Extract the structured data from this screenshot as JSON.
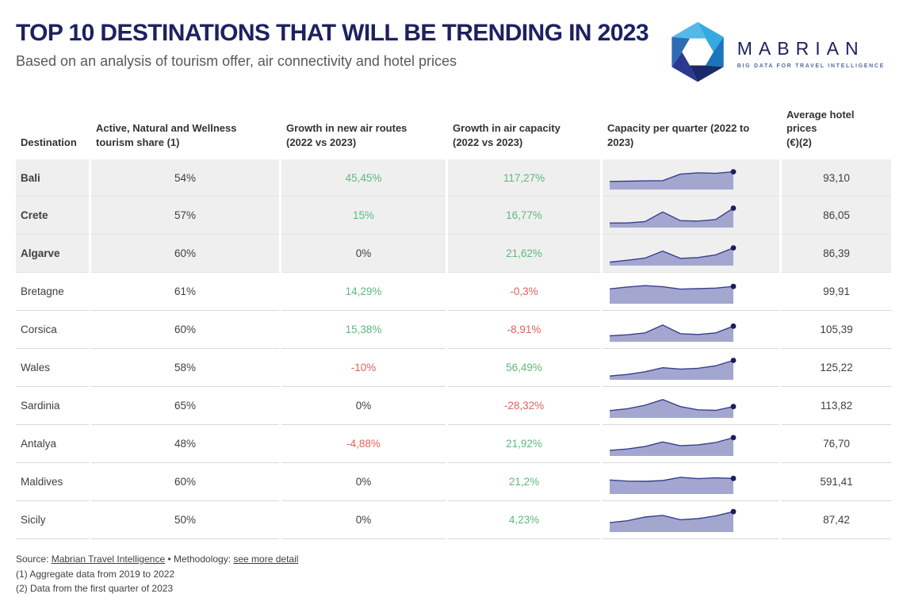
{
  "header": {
    "title": "TOP 10 DESTINATIONS THAT WILL BE TRENDING IN 2023",
    "subtitle": "Based on an analysis of tourism offer, air connectivity and hotel prices"
  },
  "logo": {
    "name": "MABRIAN",
    "tagline": "BIG DATA FOR TRAVEL INTELLIGENCE",
    "icon": "aperture-hexagon-icon",
    "icon_colors": [
      "#36a9e1",
      "#1b75bc",
      "#1b2a68",
      "#2b3990",
      "#2d6cb5",
      "#53b9e9"
    ]
  },
  "colors": {
    "accent_navy": "#1d2161",
    "positive": "#5cba7d",
    "negative": "#e2615c",
    "neutral_text": "#3f3f3f",
    "highlight_row_bg": "#efefef",
    "spark_fill": "#a3a7d0",
    "spark_stroke": "#3a3f8c",
    "spark_dot": "#1b1f5c",
    "separator": "#d9d9d9"
  },
  "table": {
    "columns": [
      {
        "id": "destination",
        "label_lines": [
          "Destination"
        ]
      },
      {
        "id": "tourism-share",
        "label_lines": [
          "Active, Natural and Wellness",
          "tourism share (1)"
        ]
      },
      {
        "id": "air-routes-growth",
        "label_lines": [
          "Growth in new air routes",
          "(2022 vs 2023)"
        ]
      },
      {
        "id": "air-capacity-growth",
        "label_lines": [
          "Growth in air capacity",
          "(2022 vs 2023)"
        ]
      },
      {
        "id": "capacity-per-quarter",
        "label_lines": [
          "Capacity per quarter (2022 to",
          "2023)"
        ]
      },
      {
        "id": "avg-hotel-prices",
        "label_lines": [
          "Average hotel prices",
          "(€)(2)"
        ]
      }
    ],
    "rows": [
      {
        "destination": "Bali",
        "highlight": true,
        "tourism_share": "54%",
        "air_routes_growth": {
          "value": "45,45%",
          "trend": "up"
        },
        "air_capacity_growth": {
          "value": "117,27%",
          "trend": "up"
        },
        "capacity_per_quarter": [
          0.3,
          0.31,
          0.32,
          0.33,
          0.57,
          0.62,
          0.6,
          0.66
        ],
        "avg_hotel_price": "93,10"
      },
      {
        "destination": "Crete",
        "highlight": true,
        "tourism_share": "57%",
        "air_routes_growth": {
          "value": "15%",
          "trend": "up"
        },
        "air_capacity_growth": {
          "value": "16,77%",
          "trend": "up"
        },
        "capacity_per_quarter": [
          0.17,
          0.17,
          0.22,
          0.58,
          0.26,
          0.24,
          0.3,
          0.72
        ],
        "avg_hotel_price": "86,05"
      },
      {
        "destination": "Algarve",
        "highlight": true,
        "tourism_share": "60%",
        "air_routes_growth": {
          "value": "0%",
          "trend": "flat"
        },
        "air_capacity_growth": {
          "value": "21,62%",
          "trend": "up"
        },
        "capacity_per_quarter": [
          0.13,
          0.2,
          0.28,
          0.54,
          0.27,
          0.3,
          0.4,
          0.66
        ],
        "avg_hotel_price": "86,39"
      },
      {
        "destination": "Bretagne",
        "highlight": false,
        "tourism_share": "61%",
        "air_routes_growth": {
          "value": "14,29%",
          "trend": "up"
        },
        "air_capacity_growth": {
          "value": "-0,3%",
          "trend": "down"
        },
        "capacity_per_quarter": [
          0.55,
          0.62,
          0.67,
          0.63,
          0.54,
          0.56,
          0.58,
          0.64
        ],
        "avg_hotel_price": "99,91"
      },
      {
        "destination": "Corsica",
        "highlight": false,
        "tourism_share": "60%",
        "air_routes_growth": {
          "value": "15,38%",
          "trend": "up"
        },
        "air_capacity_growth": {
          "value": "-8,91%",
          "trend": "down"
        },
        "capacity_per_quarter": [
          0.22,
          0.26,
          0.33,
          0.62,
          0.3,
          0.27,
          0.33,
          0.58
        ],
        "avg_hotel_price": "105,39"
      },
      {
        "destination": "Wales",
        "highlight": false,
        "tourism_share": "58%",
        "air_routes_growth": {
          "value": "-10%",
          "trend": "down"
        },
        "air_capacity_growth": {
          "value": "56,49%",
          "trend": "up"
        },
        "capacity_per_quarter": [
          0.14,
          0.2,
          0.3,
          0.45,
          0.4,
          0.43,
          0.52,
          0.72
        ],
        "avg_hotel_price": "125,22"
      },
      {
        "destination": "Sardinia",
        "highlight": false,
        "tourism_share": "65%",
        "air_routes_growth": {
          "value": "0%",
          "trend": "flat"
        },
        "air_capacity_growth": {
          "value": "-28,32%",
          "trend": "down"
        },
        "capacity_per_quarter": [
          0.27,
          0.34,
          0.47,
          0.68,
          0.42,
          0.3,
          0.28,
          0.42
        ],
        "avg_hotel_price": "113,82"
      },
      {
        "destination": "Antalya",
        "highlight": false,
        "tourism_share": "48%",
        "air_routes_growth": {
          "value": "-4,88%",
          "trend": "down"
        },
        "air_capacity_growth": {
          "value": "21,92%",
          "trend": "up"
        },
        "capacity_per_quarter": [
          0.21,
          0.26,
          0.35,
          0.52,
          0.38,
          0.41,
          0.5,
          0.68
        ],
        "avg_hotel_price": "76,70"
      },
      {
        "destination": "Maldives",
        "highlight": false,
        "tourism_share": "60%",
        "air_routes_growth": {
          "value": "0%",
          "trend": "flat"
        },
        "air_capacity_growth": {
          "value": "21,2%",
          "trend": "up"
        },
        "capacity_per_quarter": [
          0.52,
          0.48,
          0.47,
          0.5,
          0.62,
          0.57,
          0.6,
          0.58
        ],
        "avg_hotel_price": "591,41"
      },
      {
        "destination": "Sicily",
        "highlight": false,
        "tourism_share": "50%",
        "air_routes_growth": {
          "value": "0%",
          "trend": "flat"
        },
        "air_capacity_growth": {
          "value": "4,23%",
          "trend": "up"
        },
        "capacity_per_quarter": [
          0.35,
          0.42,
          0.56,
          0.62,
          0.46,
          0.5,
          0.6,
          0.76
        ],
        "avg_hotel_price": "87,42"
      }
    ]
  },
  "footer": {
    "source_prefix": "Source: ",
    "source_link": "Mabrian Travel Intelligence",
    "methodology_prefix": " • Methodology: ",
    "methodology_link": "see more detail",
    "footnote1": "(1) Aggregate data from 2019 to 2022",
    "footnote2": "(2) Data from the first quarter of 2023"
  },
  "chart_data": {
    "type": "table",
    "title": "TOP 10 DESTINATIONS THAT WILL BE TRENDING IN 2023",
    "columns": [
      "Destination",
      "Active, Natural and Wellness tourism share (1)",
      "Growth in new air routes (2022 vs 2023)",
      "Growth in air capacity (2022 vs 2023)",
      "Capacity per quarter (2022 to 2023)",
      "Average hotel prices (€)(2)"
    ],
    "rows": [
      [
        "Bali",
        "54%",
        "45,45%",
        "117,27%",
        "sparkline",
        "93,10"
      ],
      [
        "Crete",
        "57%",
        "15%",
        "16,77%",
        "sparkline",
        "86,05"
      ],
      [
        "Algarve",
        "60%",
        "0%",
        "21,62%",
        "sparkline",
        "86,39"
      ],
      [
        "Bretagne",
        "61%",
        "14,29%",
        "-0,3%",
        "sparkline",
        "99,91"
      ],
      [
        "Corsica",
        "60%",
        "15,38%",
        "-8,91%",
        "sparkline",
        "105,39"
      ],
      [
        "Wales",
        "58%",
        "-10%",
        "56,49%",
        "sparkline",
        "125,22"
      ],
      [
        "Sardinia",
        "65%",
        "0%",
        "-28,32%",
        "sparkline",
        "113,82"
      ],
      [
        "Antalya",
        "48%",
        "-4,88%",
        "21,92%",
        "sparkline",
        "76,70"
      ],
      [
        "Maldives",
        "60%",
        "0%",
        "21,2%",
        "sparkline",
        "591,41"
      ],
      [
        "Sicily",
        "50%",
        "0%",
        "4,23%",
        "sparkline",
        "87,42"
      ]
    ],
    "embedded_sparklines": {
      "type": "area",
      "points_per_series": 8,
      "ylim": [
        0,
        1
      ],
      "axes": "hidden",
      "series": [
        {
          "name": "Bali",
          "values": [
            0.3,
            0.31,
            0.32,
            0.33,
            0.57,
            0.62,
            0.6,
            0.66
          ]
        },
        {
          "name": "Crete",
          "values": [
            0.17,
            0.17,
            0.22,
            0.58,
            0.26,
            0.24,
            0.3,
            0.72
          ]
        },
        {
          "name": "Algarve",
          "values": [
            0.13,
            0.2,
            0.28,
            0.54,
            0.27,
            0.3,
            0.4,
            0.66
          ]
        },
        {
          "name": "Bretagne",
          "values": [
            0.55,
            0.62,
            0.67,
            0.63,
            0.54,
            0.56,
            0.58,
            0.64
          ]
        },
        {
          "name": "Corsica",
          "values": [
            0.22,
            0.26,
            0.33,
            0.62,
            0.3,
            0.27,
            0.33,
            0.58
          ]
        },
        {
          "name": "Wales",
          "values": [
            0.14,
            0.2,
            0.3,
            0.45,
            0.4,
            0.43,
            0.52,
            0.72
          ]
        },
        {
          "name": "Sardinia",
          "values": [
            0.27,
            0.34,
            0.47,
            0.68,
            0.42,
            0.3,
            0.28,
            0.42
          ]
        },
        {
          "name": "Antalya",
          "values": [
            0.21,
            0.26,
            0.35,
            0.52,
            0.38,
            0.41,
            0.5,
            0.68
          ]
        },
        {
          "name": "Maldives",
          "values": [
            0.52,
            0.48,
            0.47,
            0.5,
            0.62,
            0.57,
            0.6,
            0.58
          ]
        },
        {
          "name": "Sicily",
          "values": [
            0.35,
            0.42,
            0.56,
            0.62,
            0.46,
            0.5,
            0.6,
            0.76
          ]
        }
      ]
    }
  }
}
